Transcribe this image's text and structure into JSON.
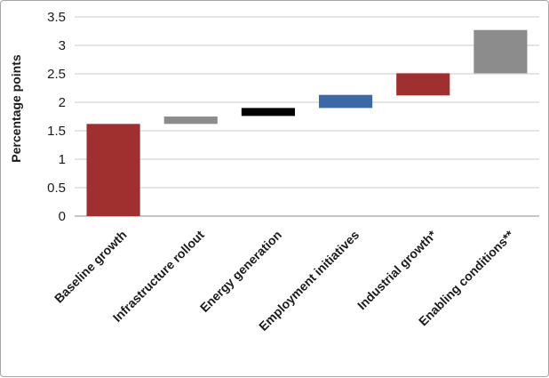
{
  "chart_data": {
    "type": "bar",
    "subtype": "waterfall",
    "title": "",
    "xlabel": "",
    "ylabel": "Percentage points",
    "ylim": [
      0,
      3.5
    ],
    "yticks": [
      "0",
      "0.5",
      "1",
      "1.5",
      "2",
      "2.5",
      "3",
      "3.5"
    ],
    "grid": true,
    "legend": "none",
    "categories": [
      "Baseline growth",
      "Infrastructure rollout",
      "Energy generation",
      "Employment initiatives",
      "Industrial growth*",
      "Enabling conditions**"
    ],
    "bars": [
      {
        "category": "Baseline growth",
        "start": 0,
        "end": 1.62,
        "color": "#a0302f"
      },
      {
        "category": "Infrastructure rollout",
        "start": 1.62,
        "end": 1.75,
        "color": "#8c8c8c"
      },
      {
        "category": "Energy generation",
        "start": 1.76,
        "end": 1.9,
        "color": "#000000"
      },
      {
        "category": "Employment initiatives",
        "start": 1.9,
        "end": 2.13,
        "color": "#3a6aa6"
      },
      {
        "category": "Industrial growth*",
        "start": 2.12,
        "end": 2.51,
        "color": "#a0302f"
      },
      {
        "category": "Enabling conditions**",
        "start": 2.51,
        "end": 3.27,
        "color": "#8c8c8c"
      }
    ]
  }
}
